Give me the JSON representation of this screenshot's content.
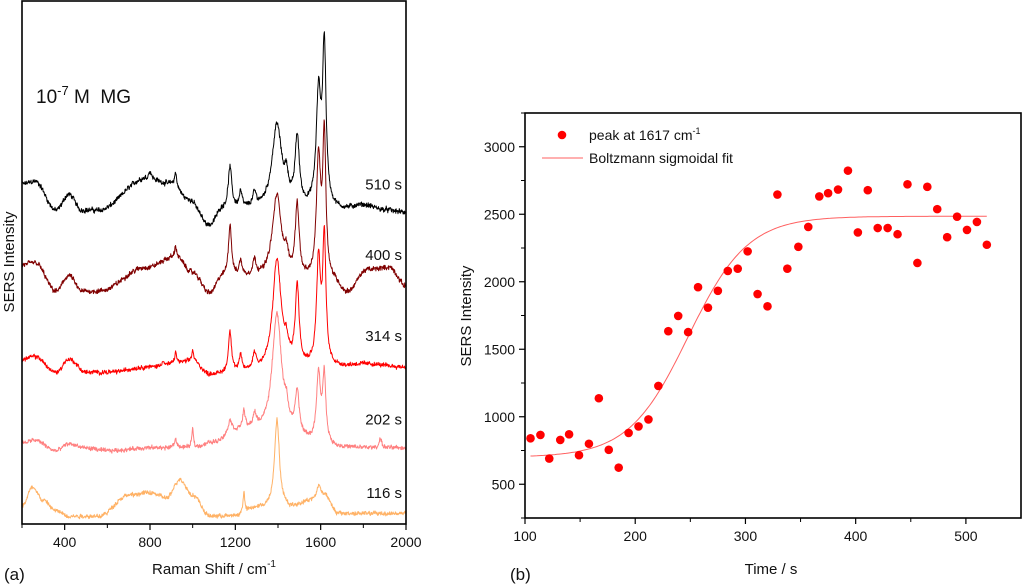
{
  "chart_data": [
    {
      "panel_label": "(a)",
      "type": "line",
      "title": "",
      "annotation": {
        "base": "10",
        "exponent": "-7",
        "rest": " M  MG"
      },
      "xlabel": {
        "text": "Raman Shift / cm",
        "superscript": "-1"
      },
      "ylabel": "SERS Intensity",
      "xlim": [
        200,
        2000
      ],
      "ylim": [
        0,
        100
      ],
      "y_units": "arbitrary (stacked, offset traces)",
      "y_ticks_shown": false,
      "x_ticks": [
        400,
        800,
        1200,
        1600,
        2000
      ],
      "x_tick_labels": [
        "400",
        "800",
        "1200",
        "1600",
        "2000"
      ],
      "x_minor_ticks": [
        200,
        600,
        1000,
        1400,
        1800
      ],
      "grid": false,
      "series": [
        {
          "name": "510 s",
          "color": "#000000",
          "baseline": 60,
          "background": [
            [
              200,
              5
            ],
            [
              260,
              5.5
            ],
            [
              360,
              0
            ],
            [
              420,
              3
            ],
            [
              480,
              0
            ],
            [
              560,
              0
            ],
            [
              780,
              6
            ],
            [
              900,
              5
            ],
            [
              980,
              2
            ],
            [
              1080,
              -3
            ],
            [
              1140,
              0
            ],
            [
              1700,
              0
            ],
            [
              1800,
              0.8
            ],
            [
              1900,
              0
            ],
            [
              2000,
              -0.5
            ]
          ],
          "peaks": [
            [
              1175,
              8,
              10
            ],
            [
              1225,
              3,
              8
            ],
            [
              1290,
              2.5,
              10
            ],
            [
              1395,
              16,
              28
            ],
            [
              1490,
              13,
              12
            ],
            [
              1440,
              4,
              10
            ],
            [
              1590,
              21,
              13
            ],
            [
              1617,
              30,
              10
            ],
            [
              920,
              2.5,
              6
            ],
            [
              800,
              1.5,
              8
            ]
          ],
          "noise": 0.7,
          "label_y": 64
        },
        {
          "name": "400 s",
          "color": "#800000",
          "baseline": 46,
          "background": [
            [
              200,
              3.5
            ],
            [
              260,
              4
            ],
            [
              360,
              -1.5
            ],
            [
              420,
              1.5
            ],
            [
              480,
              -1.5
            ],
            [
              560,
              -1.5
            ],
            [
              780,
              3
            ],
            [
              920,
              5
            ],
            [
              1000,
              2
            ],
            [
              1080,
              -2
            ],
            [
              1140,
              1
            ],
            [
              1660,
              0
            ],
            [
              1720,
              -2
            ],
            [
              1820,
              2.5
            ],
            [
              1920,
              3
            ],
            [
              2000,
              -0.5
            ]
          ],
          "peaks": [
            [
              1175,
              10,
              9
            ],
            [
              1225,
              3,
              8
            ],
            [
              1290,
              3,
              10
            ],
            [
              1395,
              16,
              26
            ],
            [
              1490,
              14,
              11
            ],
            [
              1440,
              3,
              10
            ],
            [
              1590,
              23,
              12
            ],
            [
              1617,
              27,
              9
            ],
            [
              920,
              2,
              6
            ]
          ],
          "noise": 0.7,
          "label_y": 50.5
        },
        {
          "name": "314 s",
          "color": "#ff0000",
          "baseline": 30,
          "background": [
            [
              200,
              1.5
            ],
            [
              260,
              2
            ],
            [
              360,
              -1
            ],
            [
              420,
              1.5
            ],
            [
              500,
              -1
            ],
            [
              600,
              -1
            ],
            [
              800,
              0
            ],
            [
              1000,
              1
            ],
            [
              1080,
              -1.5
            ],
            [
              1700,
              0
            ],
            [
              1800,
              0.5
            ],
            [
              2000,
              0
            ]
          ],
          "peaks": [
            [
              1175,
              8,
              9
            ],
            [
              1225,
              3,
              8
            ],
            [
              1290,
              3,
              10
            ],
            [
              1395,
              21,
              24
            ],
            [
              1490,
              15,
              11
            ],
            [
              1440,
              3,
              10
            ],
            [
              1590,
              20,
              11
            ],
            [
              1617,
              24,
              9
            ],
            [
              920,
              2,
              6
            ],
            [
              1000,
              2,
              6
            ],
            [
              860,
              1,
              6
            ]
          ],
          "noise": 0.6,
          "label_y": 35
        },
        {
          "name": "202 s",
          "color": "#ff8080",
          "baseline": 14.5,
          "background": [
            [
              200,
              1
            ],
            [
              260,
              1.5
            ],
            [
              360,
              -0.5
            ],
            [
              420,
              0.8
            ],
            [
              500,
              0
            ],
            [
              600,
              -0.5
            ],
            [
              800,
              0
            ],
            [
              1000,
              0
            ],
            [
              1100,
              1
            ],
            [
              1200,
              3
            ],
            [
              1300,
              3
            ],
            [
              1700,
              0
            ],
            [
              2000,
              0
            ]
          ],
          "peaks": [
            [
              1395,
              23,
              26
            ],
            [
              1490,
              8,
              11
            ],
            [
              1440,
              3,
              10
            ],
            [
              1590,
              13,
              11
            ],
            [
              1617,
              13,
              9
            ],
            [
              1175,
              2.5,
              9
            ],
            [
              1240,
              3.5,
              8
            ],
            [
              1290,
              2.5,
              10
            ],
            [
              1000,
              3.5,
              5
            ],
            [
              1880,
              2,
              6
            ],
            [
              920,
              1.5,
              8
            ]
          ],
          "noise": 0.6,
          "label_y": 19
        },
        {
          "name": "116 s",
          "color": "#ffb266",
          "baseline": 1.5,
          "background": [
            [
              200,
              2
            ],
            [
              250,
              5.5
            ],
            [
              300,
              3
            ],
            [
              360,
              1
            ],
            [
              420,
              0
            ],
            [
              560,
              0
            ],
            [
              700,
              4
            ],
            [
              800,
              4.5
            ],
            [
              880,
              3.5
            ],
            [
              940,
              7
            ],
            [
              1000,
              4
            ],
            [
              1080,
              0
            ],
            [
              1200,
              0
            ],
            [
              1300,
              1.5
            ],
            [
              1450,
              1.5
            ],
            [
              1560,
              3
            ],
            [
              1620,
              4
            ],
            [
              1680,
              0.5
            ],
            [
              2000,
              0.5
            ]
          ],
          "peaks": [
            [
              1395,
              17,
              14
            ],
            [
              1240,
              4,
              5
            ],
            [
              1590,
              2.5,
              10
            ]
          ],
          "noise": 0.6,
          "label_y": 5
        }
      ]
    },
    {
      "panel_label": "(b)",
      "type": "scatter",
      "title": "",
      "xlabel": "Time / s",
      "ylabel": "SERS Intensity",
      "xlim": [
        100,
        550
      ],
      "ylim": [
        250,
        3250
      ],
      "x_ticks": [
        100,
        200,
        300,
        400,
        500
      ],
      "x_tick_labels": [
        "100",
        "200",
        "300",
        "400",
        "500"
      ],
      "x_minor_ticks": [
        150,
        250,
        350,
        450
      ],
      "y_ticks": [
        500,
        1000,
        1500,
        2000,
        2500,
        3000
      ],
      "y_tick_labels": [
        "500",
        "1000",
        "1500",
        "2000",
        "2500",
        "3000"
      ],
      "y_minor_ticks": [
        250,
        750,
        1250,
        1750,
        2250,
        2750,
        3250
      ],
      "grid": false,
      "legend": {
        "position": "top-left",
        "entries": [
          {
            "label": "peak at 1617 cm",
            "superscript": "-1",
            "kind": "marker",
            "color": "#ff0000"
          },
          {
            "label": "Boltzmann sigmoidal fit",
            "superscript": "",
            "kind": "line",
            "color": "#ff6060"
          }
        ]
      },
      "series": [
        {
          "name": "peak at 1617 cm-1",
          "color": "#ff0000",
          "x": [
            105,
            114,
            122,
            132,
            140,
            149,
            158,
            167,
            176,
            185,
            194,
            203,
            212,
            221,
            230,
            239,
            248,
            257,
            266,
            275,
            284,
            293,
            302,
            311,
            320,
            329,
            338,
            348,
            357,
            367,
            375,
            384,
            393,
            402,
            411,
            420,
            429,
            438,
            447,
            456,
            465,
            474,
            483,
            492,
            501,
            510,
            519
          ],
          "y": [
            840,
            865,
            690,
            828,
            870,
            715,
            800,
            1137,
            755,
            623,
            880,
            928,
            980,
            1228,
            1634,
            1747,
            1627,
            1960,
            1808,
            1933,
            2080,
            2097,
            2225,
            1909,
            1818,
            2646,
            2097,
            2259,
            2406,
            2632,
            2656,
            2683,
            2823,
            2365,
            2678,
            2398,
            2398,
            2352,
            2722,
            2139,
            2703,
            2538,
            2330,
            2482,
            2384,
            2443,
            2274
          ]
        }
      ],
      "fit": {
        "name": "Boltzmann sigmoidal fit",
        "model": "A2 + (A1 - A2) / (1 + exp((t - t0) / dt))",
        "A1": 700,
        "A2": 2485,
        "t0": 248,
        "dt": 27,
        "t_range": [
          105,
          519
        ],
        "color": "#ff6060"
      }
    }
  ]
}
